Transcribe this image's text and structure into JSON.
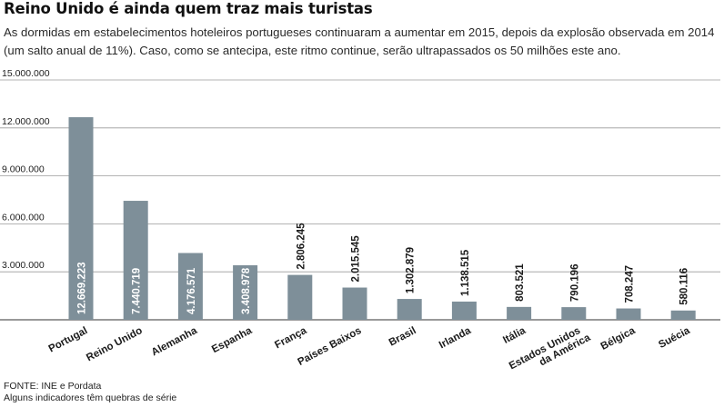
{
  "header": {
    "title": "Reino Unido é ainda quem traz mais turistas",
    "subtitle": "As dormidas em estabelecimentos hoteleiros portugueses continuaram a aumentar em 2015, depois da explosão observada em 2014 (um salto anual de 11%). Caso, como se antecipa, este ritmo continue, serão ultrapassados os 50 milhões este ano."
  },
  "footer": {
    "source": "FONTE: INE e Pordata",
    "note": "Alguns indicadores têm quebras de série"
  },
  "colors": {
    "bar": "#7e8f99",
    "grid": "#9a9a9a",
    "axis": "#333333"
  },
  "chart_data": {
    "type": "bar",
    "title": "Reino Unido é ainda quem traz mais turistas",
    "xlabel": "",
    "ylabel": "",
    "ylim": [
      0,
      15000000
    ],
    "yticks": [
      3000000,
      6000000,
      9000000,
      12000000,
      15000000
    ],
    "ytick_labels": [
      "3.000.000",
      "6.000.000",
      "9.000.000",
      "12.000.000",
      "15.000.000"
    ],
    "grid": true,
    "categories": [
      "Portugal",
      "Reino Unido",
      "Alemanha",
      "Espanha",
      "França",
      "Países Baixos",
      "Brasil",
      "Irlanda",
      "Itália",
      "Estados Unidos da América",
      "Bélgica",
      "Suécia"
    ],
    "category_lines": [
      [
        "Portugal"
      ],
      [
        "Reino Unido"
      ],
      [
        "Alemanha"
      ],
      [
        "Espanha"
      ],
      [
        "França"
      ],
      [
        "Países Baixos"
      ],
      [
        "Brasil"
      ],
      [
        "Irlanda"
      ],
      [
        "Itália"
      ],
      [
        "Estados Unidos",
        "da América"
      ],
      [
        "Bélgica"
      ],
      [
        "Suécia"
      ]
    ],
    "values": [
      12669223,
      7440719,
      4176571,
      3408978,
      2806245,
      2015545,
      1302879,
      1138515,
      803521,
      790196,
      708247,
      580116
    ],
    "value_labels": [
      "12.669.223",
      "7.440.719",
      "4.176.571",
      "3.408.978",
      "2.806.245",
      "2.015.545",
      "1.302.879",
      "1.138.515",
      "803.521",
      "790.196",
      "708.247",
      "580.116"
    ],
    "value_label_inside": [
      true,
      true,
      true,
      true,
      false,
      false,
      false,
      false,
      false,
      false,
      false,
      false
    ]
  }
}
